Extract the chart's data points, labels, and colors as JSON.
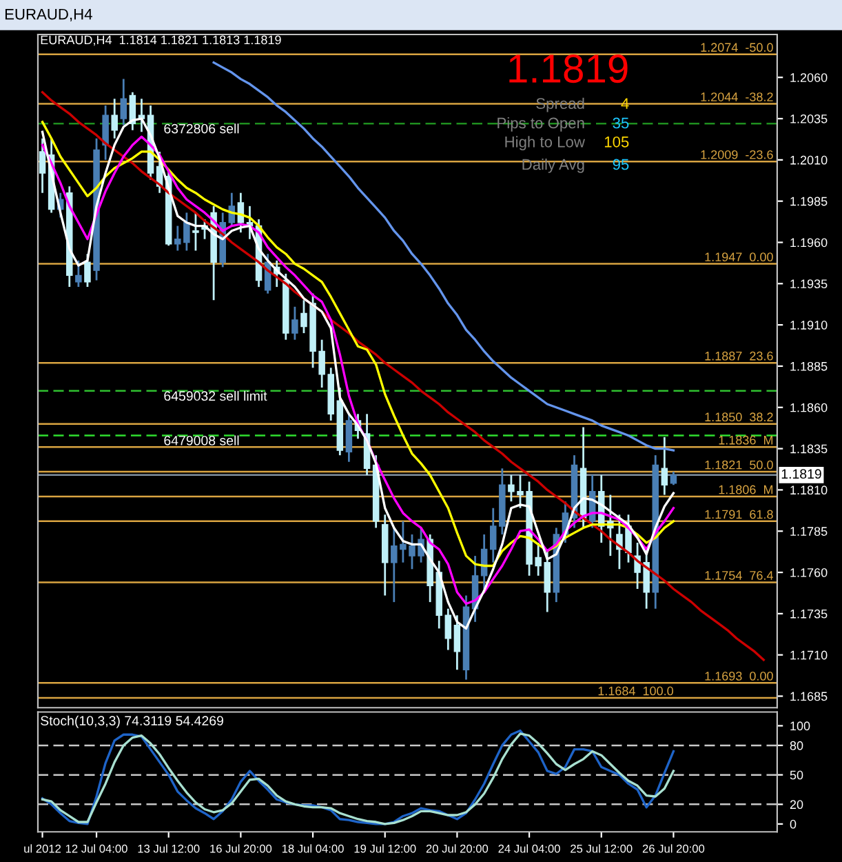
{
  "chart_data": [
    {
      "type": "candlestick",
      "title": "EURAUD,H4",
      "subtitle": "EURAUD,H4  1.1814 1.1821 1.1813 1.1819",
      "annotations": [
        "1.1819",
        "Spread",
        "4",
        "Pips to Open",
        "35",
        "High to Low",
        "105",
        "Daily Avg",
        "95"
      ],
      "categories": [
        null,
        null,
        null,
        null,
        null,
        null,
        null,
        null,
        null,
        null,
        null,
        null,
        null,
        null,
        null,
        null,
        null,
        null,
        null,
        null,
        null,
        null,
        null,
        null,
        null,
        null,
        null,
        null,
        null,
        null,
        null,
        null,
        null,
        null,
        null,
        null,
        null,
        null,
        null,
        null,
        null,
        null,
        null,
        null,
        null,
        null,
        null,
        null,
        null,
        null,
        null,
        null,
        null,
        null,
        null,
        null,
        null,
        null,
        null,
        null,
        null,
        null,
        null,
        null,
        null,
        null,
        null,
        null,
        null,
        null,
        null,
        null,
        null,
        null,
        null,
        null,
        null,
        null,
        null,
        null,
        null,
        null
      ],
      "ohlc": [
        [
          1.2015,
          1.2023,
          1.199,
          1.2002
        ],
        [
          1.2013,
          1.2023,
          1.1978,
          1.198
        ],
        [
          1.198,
          1.199,
          1.1975,
          1.1986
        ],
        [
          1.199,
          1.1994,
          1.1933,
          1.194
        ],
        [
          1.1936,
          1.1949,
          1.1933,
          1.194
        ],
        [
          1.1948,
          1.1953,
          1.1933,
          1.1936
        ],
        [
          1.1943,
          1.2023,
          1.1937,
          1.2016
        ],
        [
          1.2019,
          1.2043,
          1.201,
          1.2037
        ],
        [
          1.2037,
          1.2047,
          1.2023,
          1.2028
        ],
        [
          1.2035,
          1.2059,
          1.2031,
          1.2047
        ],
        [
          1.2049,
          1.2051,
          1.2028,
          1.2032
        ],
        [
          1.2037,
          1.2047,
          1.2027,
          1.2035
        ],
        [
          1.2037,
          1.2043,
          1.1998,
          1.2002
        ],
        [
          1.2006,
          1.2015,
          1.199,
          1.1994
        ],
        [
          1.2,
          1.2004,
          1.1958,
          1.1959
        ],
        [
          1.1959,
          1.197,
          1.1955,
          1.1962
        ],
        [
          1.196,
          1.1978,
          1.1955,
          1.1972
        ],
        [
          1.1967,
          1.1978,
          1.1955,
          1.1966
        ],
        [
          1.197,
          1.1974,
          1.1962,
          1.1968
        ],
        [
          1.1978,
          1.1982,
          1.1925,
          1.1948
        ],
        [
          1.1948,
          1.1978,
          1.1945,
          1.1972
        ],
        [
          1.1972,
          1.199,
          1.197,
          1.1982
        ],
        [
          1.1984,
          1.199,
          1.1966,
          1.1972
        ],
        [
          1.1972,
          1.1982,
          1.1962,
          1.197
        ],
        [
          1.197,
          1.1974,
          1.1933,
          1.1937
        ],
        [
          1.1931,
          1.1953,
          1.1929,
          1.1948
        ],
        [
          1.1945,
          1.1949,
          1.1933,
          1.1941
        ],
        [
          1.1937,
          1.1941,
          1.1901,
          1.1905
        ],
        [
          1.1905,
          1.1921,
          1.1901,
          1.1913
        ],
        [
          1.1917,
          1.1925,
          1.1905,
          1.1909
        ],
        [
          1.1923,
          1.1929,
          1.1884,
          1.1894
        ],
        [
          1.1894,
          1.1901,
          1.1872,
          1.188
        ],
        [
          1.188,
          1.1884,
          1.1852,
          1.1856
        ],
        [
          1.1864,
          1.1872,
          1.1831,
          1.1834
        ],
        [
          1.1833,
          1.1856,
          1.1827,
          1.1852
        ],
        [
          1.1852,
          1.1856,
          1.1841,
          1.1846
        ],
        [
          1.1844,
          1.1856,
          1.1819,
          1.1823
        ],
        [
          1.1825,
          1.1831,
          1.1787,
          1.1791
        ],
        [
          1.1789,
          1.1795,
          1.1746,
          1.1766
        ],
        [
          1.1766,
          1.1787,
          1.1742,
          1.1776
        ],
        [
          1.1774,
          1.1791,
          1.1766,
          1.1777
        ],
        [
          1.177,
          1.1783,
          1.1762,
          1.1776
        ],
        [
          1.177,
          1.1787,
          1.1766,
          1.178
        ],
        [
          1.178,
          1.1783,
          1.1742,
          1.1752
        ],
        [
          1.176,
          1.1767,
          1.1726,
          1.1734
        ],
        [
          1.1734,
          1.1738,
          1.1713,
          1.172
        ],
        [
          1.1728,
          1.1734,
          1.1701,
          1.1712
        ],
        [
          1.1701,
          1.1746,
          1.1695,
          1.1739
        ],
        [
          1.1738,
          1.177,
          1.173,
          1.1758
        ],
        [
          1.1758,
          1.1783,
          1.175,
          1.1774
        ],
        [
          1.1774,
          1.1799,
          1.1766,
          1.1788
        ],
        [
          1.1788,
          1.1823,
          1.1783,
          1.1813
        ],
        [
          1.1813,
          1.1819,
          1.1803,
          1.1809
        ],
        [
          1.1809,
          1.1819,
          1.1799,
          1.1807
        ],
        [
          1.1809,
          1.1815,
          1.1758,
          1.1765
        ],
        [
          1.1769,
          1.1778,
          1.1758,
          1.1764
        ],
        [
          1.1766,
          1.1774,
          1.1736,
          1.1748
        ],
        [
          1.1748,
          1.1787,
          1.1742,
          1.1783
        ],
        [
          1.1783,
          1.1803,
          1.1778,
          1.1796
        ],
        [
          1.1793,
          1.1831,
          1.1787,
          1.1825
        ],
        [
          1.1823,
          1.1848,
          1.1787,
          1.1793
        ],
        [
          1.1791,
          1.1819,
          1.1787,
          1.1809
        ],
        [
          1.1809,
          1.1819,
          1.1778,
          1.1788
        ],
        [
          1.1791,
          1.1807,
          1.177,
          1.1787
        ],
        [
          1.1783,
          1.1795,
          1.1762,
          1.1774
        ],
        [
          1.1788,
          1.1795,
          1.1766,
          1.1772
        ],
        [
          1.177,
          1.1778,
          1.175,
          1.176
        ],
        [
          1.1766,
          1.1774,
          1.1738,
          1.1748
        ],
        [
          1.1748,
          1.1831,
          1.1738,
          1.1825
        ],
        [
          1.1823,
          1.1842,
          1.1807,
          1.1813
        ],
        [
          1.1814,
          1.1821,
          1.1813,
          1.1819
        ],
        null,
        null,
        null,
        null,
        null,
        null,
        null,
        null,
        null,
        null,
        null
      ],
      "colors": [
        "#c0f0f8",
        "#c0f0f8",
        "#4a7fb5",
        "#c0f0f8",
        "#4a7fb5",
        "#c0f0f8",
        "#4a7fb5",
        "#4a7fb5",
        "#c0f0f8",
        "#4a7fb5",
        "#c0f0f8",
        "#c0f0f8",
        "#c0f0f8",
        "#c0f0f8",
        "#c0f0f8",
        "#4a7fb5",
        "#4a7fb5",
        "#c0f0f8",
        "#c0f0f8",
        "#c0f0f8",
        "#4a7fb5",
        "#4a7fb5",
        "#c0f0f8",
        "#c0f0f8",
        "#c0f0f8",
        "#4a7fb5",
        "#c0f0f8",
        "#c0f0f8",
        "#4a7fb5",
        "#c0f0f8",
        "#c0f0f8",
        "#c0f0f8",
        "#c0f0f8",
        "#c0f0f8",
        "#4a7fb5",
        "#c0f0f8",
        "#c0f0f8",
        "#c0f0f8",
        "#c0f0f8",
        "#4a7fb5",
        "#4a7fb5",
        "#4a7fb5",
        "#4a7fb5",
        "#c0f0f8",
        "#c0f0f8",
        "#c0f0f8",
        "#c0f0f8",
        "#4a7fb5",
        "#4a7fb5",
        "#4a7fb5",
        "#4a7fb5",
        "#4a7fb5",
        "#c0f0f8",
        "#c0f0f8",
        "#c0f0f8",
        "#c0f0f8",
        "#c0f0f8",
        "#4a7fb5",
        "#4a7fb5",
        "#4a7fb5",
        "#c0f0f8",
        "#4a7fb5",
        "#c0f0f8",
        "#c0f0f8",
        "#c0f0f8",
        "#c0f0f8",
        "#c0f0f8",
        "#c0f0f8",
        "#4a7fb5",
        "#c0f0f8",
        "#4a7fb5",
        null,
        null,
        null,
        null,
        null,
        null,
        null,
        null,
        null,
        null,
        null
      ],
      "series": [
        {
          "type": "line",
          "color": "#6495ed",
          "values": [
            null,
            null,
            null,
            null,
            null,
            null,
            null,
            null,
            null,
            null,
            null,
            null,
            null,
            null,
            null,
            null,
            null,
            null,
            null,
            1.2069,
            1.2066,
            1.2063,
            1.2059,
            1.2056,
            1.2052,
            1.2048,
            1.2043,
            1.2039,
            1.2034,
            1.2029,
            1.2023,
            1.2018,
            1.2012,
            1.2006,
            1.2,
            1.1993,
            1.1987,
            1.1981,
            1.1975,
            1.1967,
            1.1961,
            1.1953,
            1.1947,
            1.194,
            1.1932,
            1.1923,
            1.1916,
            1.1907,
            1.1901,
            1.1894,
            1.1888,
            1.1883,
            1.1878,
            1.1874,
            1.187,
            1.1866,
            1.1862,
            1.186,
            1.1858,
            1.1856,
            1.1854,
            1.1852,
            1.1849,
            1.1847,
            1.1845,
            1.1843,
            1.184,
            1.1837,
            1.1835,
            1.1835,
            1.1834,
            null,
            null,
            null,
            null,
            null,
            null,
            null,
            null,
            null,
            null,
            null
          ]
        },
        {
          "type": "line",
          "color": "#cc0000",
          "values": [
            1.2051,
            1.2046,
            1.2042,
            1.2038,
            1.2033,
            1.2029,
            1.2025,
            1.202,
            1.2016,
            1.2012,
            1.2008,
            1.2003,
            1.1999,
            1.1995,
            1.199,
            1.1986,
            1.1982,
            1.1978,
            1.1973,
            1.1969,
            1.1965,
            1.196,
            1.1956,
            1.1952,
            1.1948,
            1.1943,
            1.1939,
            1.1935,
            1.193,
            1.1926,
            1.1922,
            1.1918,
            1.1913,
            1.1909,
            1.1905,
            1.19,
            1.1896,
            1.1892,
            1.1887,
            1.1883,
            1.1879,
            1.1875,
            1.187,
            1.1866,
            1.1862,
            1.1857,
            1.1853,
            1.1849,
            1.1845,
            1.184,
            1.1836,
            1.1832,
            1.1827,
            1.1823,
            1.1819,
            1.1815,
            1.181,
            1.1806,
            1.1802,
            1.1797,
            1.1793,
            1.1789,
            1.1785,
            1.178,
            1.1776,
            1.1772,
            1.1767,
            1.1763,
            1.1759,
            1.1755,
            1.175,
            1.1746,
            1.1742,
            1.1737,
            1.1733,
            1.1729,
            1.1725,
            1.172,
            1.1716,
            1.1712,
            1.1707,
            null
          ]
        },
        {
          "type": "line",
          "color": "#ffff00",
          "values": [
            1.2033,
            1.2023,
            1.2012,
            1.2004,
            1.1996,
            1.1988,
            1.1993,
            1.2,
            1.2005,
            1.2008,
            1.2011,
            1.2015,
            1.2015,
            1.201,
            1.2004,
            1.1998,
            1.1993,
            1.199,
            1.1986,
            1.1983,
            1.198,
            1.1978,
            1.1977,
            1.1975,
            1.197,
            1.1963,
            1.1957,
            1.1953,
            1.1947,
            1.1944,
            1.194,
            1.1936,
            1.1927,
            1.1917,
            1.1907,
            1.1897,
            1.1895,
            1.1886,
            1.1868,
            1.1855,
            1.1843,
            1.1832,
            1.1826,
            1.1819,
            1.1809,
            1.1799,
            1.1784,
            1.177,
            1.1765,
            1.1764,
            1.1764,
            1.1773,
            1.1778,
            1.1782,
            1.1781,
            1.1777,
            1.1773,
            1.1776,
            1.1781,
            1.1784,
            1.1787,
            1.1789,
            1.1789,
            1.1789,
            1.1789,
            1.1787,
            1.1783,
            1.1778,
            1.1781,
            1.1787,
            1.1791,
            null,
            null,
            null,
            null,
            null,
            null,
            null,
            null,
            null,
            null,
            null
          ]
        },
        {
          "type": "line",
          "color": "#ff00ff",
          "values": [
            1.2019,
            1.2008,
            1.1996,
            1.1982,
            1.1972,
            1.1962,
            1.1977,
            1.1991,
            1.2002,
            1.2012,
            1.2019,
            1.2024,
            1.2019,
            1.2013,
            1.2003,
            1.1993,
            1.1986,
            1.1982,
            1.1978,
            1.1973,
            1.1967,
            1.197,
            1.1971,
            1.197,
            1.1966,
            1.1957,
            1.1951,
            1.1945,
            1.194,
            1.1934,
            1.1928,
            1.1924,
            1.1913,
            1.1892,
            1.1867,
            1.185,
            1.184,
            1.1827,
            1.1816,
            1.1805,
            1.1796,
            1.1791,
            1.1787,
            1.1778,
            1.1774,
            1.1765,
            1.1748,
            1.1741,
            1.1743,
            1.1748,
            1.1756,
            1.1764,
            1.1774,
            1.1785,
            1.1786,
            1.178,
            1.1773,
            1.1777,
            1.1785,
            1.179,
            1.1794,
            1.1796,
            1.1796,
            1.1794,
            1.1792,
            1.1787,
            1.1781,
            1.1774,
            1.1784,
            1.1791,
            1.1799,
            null,
            null,
            null,
            null,
            null,
            null,
            null,
            null,
            null,
            null,
            null
          ]
        },
        {
          "type": "line",
          "color": "#ffffff",
          "values": [
            1.2027,
            1.2002,
            1.1978,
            1.1956,
            1.1946,
            1.1949,
            1.1982,
            1.2002,
            1.2019,
            1.203,
            1.2034,
            1.2035,
            1.2025,
            1.2011,
            1.1993,
            1.1976,
            1.1972,
            1.197,
            1.197,
            1.1965,
            1.1962,
            1.1967,
            1.1969,
            1.197,
            1.1956,
            1.1949,
            1.1943,
            1.1938,
            1.1933,
            1.1926,
            1.1922,
            1.1918,
            1.1908,
            1.1866,
            1.1856,
            1.1849,
            1.184,
            1.1826,
            1.1799,
            1.1787,
            1.1779,
            1.1777,
            1.1777,
            1.1768,
            1.176,
            1.1742,
            1.173,
            1.1726,
            1.1738,
            1.1749,
            1.1762,
            1.1777,
            1.1799,
            1.1801,
            1.18,
            1.1784,
            1.1768,
            1.1771,
            1.1783,
            1.1799,
            1.1805,
            1.1804,
            1.1801,
            1.1797,
            1.1793,
            1.1789,
            1.1781,
            1.1771,
            1.1787,
            1.18,
            1.1808,
            null,
            null,
            null,
            null,
            null,
            null,
            null,
            null,
            null,
            null,
            null
          ]
        }
      ],
      "ref_lines": [
        {
          "axis": "y",
          "value": 1.2074,
          "label": "1.2074  -50.0",
          "color": "#d9a441",
          "line_style": "solid"
        },
        {
          "axis": "y",
          "value": 1.2044,
          "label": "1.2044  -38.2",
          "color": "#d9a441",
          "line_style": "solid"
        },
        {
          "axis": "y",
          "value": 1.2009,
          "label": "1.2009  -23.6",
          "color": "#d9a441",
          "line_style": "solid"
        },
        {
          "axis": "y",
          "value": 1.1947,
          "label": "1.1947  0.00",
          "color": "#d9a441",
          "line_style": "solid"
        },
        {
          "axis": "y",
          "value": 1.1887,
          "label": "1.1887  23.6",
          "color": "#d9a441",
          "line_style": "solid"
        },
        {
          "axis": "y",
          "value": 1.185,
          "label": "1.1850  38.2",
          "color": "#d9a441",
          "line_style": "solid"
        },
        {
          "axis": "y",
          "value": 1.1836,
          "label": "1.1836  M",
          "color": "#d9a441",
          "line_style": "solid"
        },
        {
          "axis": "y",
          "value": 1.1821,
          "label": "1.1821  50.0",
          "color": "#d9a441",
          "line_style": "solid"
        },
        {
          "axis": "y",
          "value": 1.1806,
          "label": "1.1806  M",
          "color": "#d9a441",
          "line_style": "solid"
        },
        {
          "axis": "y",
          "value": 1.1791,
          "label": "1.1791  61.8",
          "color": "#d9a441",
          "line_style": "solid"
        },
        {
          "axis": "y",
          "value": 1.1754,
          "label": "1.1754  76.4",
          "color": "#d9a441",
          "line_style": "solid"
        },
        {
          "axis": "y",
          "value": 1.1693,
          "label": "1.1693  0.00",
          "color": "#d9a441",
          "line_style": "solid"
        },
        {
          "axis": "y",
          "value": 1.1684,
          "label": "1.1684  100.0",
          "color": "#d9a441",
          "line_style": "solid"
        },
        {
          "axis": "y",
          "value": 1.2032,
          "label": "6372806 sell",
          "color": "#1f8f1f",
          "line_style": "dashed"
        },
        {
          "axis": "y",
          "value": 1.187,
          "label": "6459032 sell limit",
          "color": "#2fbf2f",
          "line_style": "dashed"
        },
        {
          "axis": "y",
          "value": 1.1843,
          "label": "6479008 sell",
          "color": "#2fdf2f",
          "line_style": "dashed"
        },
        {
          "axis": "y",
          "value": 1.1819,
          "label": "1.1819",
          "color": "#8090a0",
          "line_style": "solid"
        }
      ],
      "ylim": [
        1.1678,
        1.2086
      ],
      "yticks": [
        {
          "value": 1.206,
          "label": "1.2060"
        },
        1.2035,
        {
          "value": 1.201,
          "label": "1.2010"
        },
        1.1985,
        {
          "value": 1.196,
          "label": "1.1960"
        },
        1.1935,
        {
          "value": 1.191,
          "label": "1.1910"
        },
        1.1885,
        {
          "value": 1.186,
          "label": "1.1860"
        },
        1.1835,
        {
          "value": 1.181,
          "label": "1.1810"
        },
        1.1785,
        {
          "value": 1.176,
          "label": "1.1760"
        },
        1.1735,
        {
          "value": 1.171,
          "label": "1.1710"
        },
        1.1685
      ],
      "tick_labels": "y"
    },
    {
      "type": "line",
      "title": "Stoch(10,3,3) 74.3119 54.4269",
      "categories": [
        "ul 2012",
        null,
        null,
        null,
        null,
        null,
        "12 Jul 04:00",
        null,
        null,
        null,
        null,
        null,
        null,
        null,
        "13 Jul 12:00",
        null,
        null,
        null,
        null,
        null,
        null,
        null,
        "16 Jul 20:00",
        null,
        null,
        null,
        null,
        null,
        null,
        null,
        "18 Jul 04:00",
        null,
        null,
        null,
        null,
        null,
        null,
        null,
        "19 Jul 12:00",
        null,
        null,
        null,
        null,
        null,
        null,
        null,
        "20 Jul 20:00",
        null,
        null,
        null,
        null,
        null,
        null,
        null,
        "24 Jul 04:00",
        null,
        null,
        null,
        null,
        null,
        null,
        null,
        "25 Jul 12:00",
        null,
        null,
        null,
        null,
        null,
        null,
        null,
        "26 Jul 20:00",
        null,
        null,
        null,
        null,
        null,
        null,
        null,
        null,
        null,
        null,
        null
      ],
      "series": [
        {
          "color": "#1e64c8",
          "values": [
            26,
            20,
            11,
            3,
            1,
            0,
            28,
            62,
            85,
            91,
            91,
            89,
            76,
            63,
            50,
            33,
            24,
            16,
            11,
            5,
            13,
            25,
            43,
            54,
            44,
            35,
            25,
            22,
            20,
            19,
            19,
            17,
            14,
            5,
            4,
            2,
            1,
            0,
            0,
            2,
            8,
            11,
            16,
            14,
            13,
            9,
            5,
            11,
            25,
            41,
            61,
            80,
            91,
            95,
            84,
            73,
            54,
            51,
            58,
            76,
            76,
            74,
            58,
            54,
            50,
            41,
            35,
            17,
            29,
            52,
            74,
            null,
            null,
            null,
            null,
            null,
            null,
            null,
            null,
            null,
            null,
            null
          ]
        },
        {
          "color": "#a8e0d0",
          "values": [
            25,
            23,
            14,
            8,
            2,
            2,
            22,
            41,
            63,
            80,
            88,
            90,
            82,
            71,
            57,
            44,
            32,
            22,
            15,
            12,
            14,
            21,
            33,
            45,
            46,
            39,
            29,
            23,
            20,
            18,
            17,
            17,
            16,
            11,
            8,
            5,
            3,
            2,
            0,
            1,
            4,
            8,
            13,
            13,
            11,
            9,
            9,
            12,
            20,
            31,
            47,
            66,
            81,
            92,
            90,
            82,
            72,
            61,
            55,
            61,
            66,
            74,
            70,
            61,
            52,
            44,
            39,
            29,
            28,
            36,
            54,
            null,
            null,
            null,
            null,
            null,
            null,
            null,
            null,
            null,
            null,
            null
          ]
        }
      ],
      "ref_lines": [
        {
          "axis": "y",
          "value": 80,
          "color": "#c8c8c8",
          "line_style": "dashed"
        },
        {
          "axis": "y",
          "value": 50,
          "color": "#c8c8c8",
          "line_style": "dashed"
        },
        {
          "axis": "y",
          "value": 20,
          "color": "#c8c8c8",
          "line_style": "dashed"
        }
      ],
      "ylim": [
        -8,
        114
      ],
      "yticks": [
        0,
        20,
        50,
        80,
        100
      ]
    }
  ]
}
